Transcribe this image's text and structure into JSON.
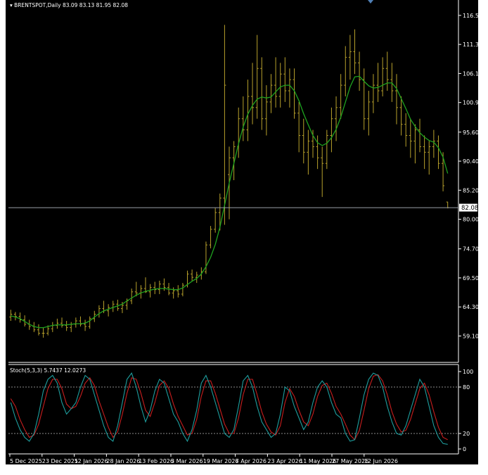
{
  "header": {
    "symbol_line": "BRENTSPOT,Daily 83.09 83.13 81.95 82.08",
    "indicator_line": "Stoch(5,3,3) 5.7437 12.0273"
  },
  "colors": {
    "background": "#000000",
    "axis": "#ffffff",
    "bar": "#b8a12c",
    "ma": "#1fa31f",
    "stoch_main": "#1e9e9e",
    "stoch_signal": "#c81e1e",
    "price_line": "#9aa0a8",
    "price_tag_bg": "#ffffff"
  },
  "chart_data": [
    {
      "type": "line",
      "name": "price",
      "title": "BRENTSPOT,Daily",
      "ylim": [
        55.0,
        118.5
      ],
      "y_ticks": [
        "116.50",
        "111.30",
        "106.10",
        "100.90",
        "95.60",
        "90.40",
        "85.20",
        "80.00",
        "74.70",
        "69.50",
        "64.30",
        "59.10"
      ],
      "current_price": "82.08",
      "x_ticks": [
        "5 Dec 2025",
        "23 Dec 2025",
        "12 Jan 2026",
        "28 Jan 2026",
        "13 Feb 2026",
        "3 Mar 2026",
        "19 Mar 2026",
        "7 Apr 2026",
        "23 Apr 2026",
        "11 May 2026",
        "27 May 2026",
        "12 Jun 2026"
      ],
      "bars": [
        [
          62.5,
          63.8,
          61.8,
          63.0
        ],
        [
          63.0,
          63.4,
          61.9,
          62.6
        ],
        [
          62.6,
          63.3,
          61.5,
          62.0
        ],
        [
          62.0,
          62.8,
          60.8,
          61.2
        ],
        [
          61.2,
          62.0,
          60.2,
          60.8
        ],
        [
          60.8,
          61.6,
          59.8,
          60.2
        ],
        [
          60.2,
          61.2,
          59.2,
          59.6
        ],
        [
          59.6,
          60.6,
          58.8,
          59.6
        ],
        [
          59.6,
          61.0,
          59.2,
          60.4
        ],
        [
          60.4,
          61.6,
          59.8,
          61.0
        ],
        [
          61.0,
          62.2,
          60.4,
          61.4
        ],
        [
          61.4,
          62.4,
          60.6,
          61.0
        ],
        [
          61.0,
          61.8,
          60.0,
          60.6
        ],
        [
          60.6,
          61.6,
          59.8,
          61.2
        ],
        [
          61.2,
          62.4,
          60.6,
          61.8
        ],
        [
          61.8,
          62.6,
          60.8,
          61.2
        ],
        [
          61.2,
          62.0,
          60.0,
          60.8
        ],
        [
          60.8,
          62.6,
          60.4,
          62.2
        ],
        [
          62.2,
          63.6,
          61.6,
          63.0
        ],
        [
          63.0,
          64.6,
          62.4,
          64.0
        ],
        [
          64.0,
          65.4,
          63.2,
          63.6
        ],
        [
          63.6,
          64.8,
          62.6,
          64.2
        ],
        [
          64.2,
          65.4,
          63.4,
          64.8
        ],
        [
          64.8,
          65.6,
          63.6,
          64.0
        ],
        [
          64.0,
          65.2,
          63.2,
          64.6
        ],
        [
          64.6,
          65.8,
          63.8,
          65.4
        ],
        [
          65.4,
          67.6,
          64.8,
          67.0
        ],
        [
          67.0,
          68.8,
          66.2,
          66.8
        ],
        [
          66.8,
          68.2,
          65.8,
          67.6
        ],
        [
          67.6,
          69.6,
          66.8,
          67.0
        ],
        [
          67.0,
          68.4,
          66.0,
          67.8
        ],
        [
          67.8,
          68.8,
          66.6,
          67.4
        ],
        [
          67.4,
          69.0,
          66.6,
          68.4
        ],
        [
          68.4,
          69.4,
          67.2,
          67.8
        ],
        [
          67.8,
          68.6,
          66.4,
          66.8
        ],
        [
          66.8,
          67.8,
          65.8,
          67.2
        ],
        [
          67.2,
          68.2,
          66.0,
          66.6
        ],
        [
          66.6,
          68.6,
          66.2,
          68.2
        ],
        [
          68.2,
          70.8,
          67.8,
          70.2
        ],
        [
          70.2,
          71.0,
          69.0,
          69.6
        ],
        [
          69.6,
          70.6,
          68.6,
          70.0
        ],
        [
          70.0,
          71.4,
          69.2,
          70.6
        ],
        [
          70.6,
          76.0,
          70.2,
          75.4
        ],
        [
          75.4,
          78.8,
          74.8,
          78.2
        ],
        [
          78.2,
          82.0,
          77.6,
          81.2
        ],
        [
          81.2,
          84.6,
          78.0,
          83.8
        ],
        [
          83.8,
          114.8,
          79.0,
          104.0
        ],
        [
          88.0,
          93.0,
          80.0,
          91.0
        ],
        [
          91.0,
          94.0,
          87.0,
          93.0
        ],
        [
          93.0,
          100.0,
          91.0,
          98.0
        ],
        [
          98.0,
          102.0,
          94.0,
          96.0
        ],
        [
          96.0,
          105.0,
          94.0,
          102.0
        ],
        [
          102.0,
          108.0,
          97.0,
          100.0
        ],
        [
          100.0,
          113.0,
          98.0,
          107.0
        ],
        [
          107.0,
          109.0,
          96.0,
          98.0
        ],
        [
          98.0,
          104.0,
          95.0,
          101.0
        ],
        [
          101.0,
          106.0,
          99.0,
          104.0
        ],
        [
          104.0,
          109.0,
          100.0,
          102.0
        ],
        [
          102.0,
          108.0,
          100.0,
          106.0
        ],
        [
          106.0,
          109.0,
          101.0,
          103.0
        ],
        [
          103.0,
          107.0,
          100.0,
          105.0
        ],
        [
          105.0,
          107.0,
          98.0,
          99.0
        ],
        [
          99.0,
          101.0,
          92.0,
          95.0
        ],
        [
          95.0,
          98.0,
          90.0,
          92.0
        ],
        [
          92.0,
          96.0,
          88.0,
          94.0
        ],
        [
          94.0,
          96.0,
          91.0,
          93.0
        ],
        [
          93.0,
          95.0,
          89.0,
          91.0
        ],
        [
          91.0,
          93.0,
          84.0,
          90.0
        ],
        [
          90.0,
          96.0,
          89.0,
          95.0
        ],
        [
          95.0,
          100.0,
          92.0,
          98.0
        ],
        [
          98.0,
          102.0,
          94.0,
          100.0
        ],
        [
          100.0,
          106.0,
          98.0,
          104.0
        ],
        [
          104.0,
          111.0,
          102.0,
          109.0
        ],
        [
          109.0,
          113.0,
          105.0,
          110.0
        ],
        [
          110.0,
          114.0,
          106.0,
          108.0
        ],
        [
          108.0,
          110.0,
          103.0,
          105.0
        ],
        [
          105.0,
          107.0,
          96.0,
          98.0
        ],
        [
          98.0,
          103.0,
          95.0,
          101.0
        ],
        [
          101.0,
          106.0,
          99.0,
          104.0
        ],
        [
          104.0,
          108.0,
          101.0,
          103.0
        ],
        [
          103.0,
          109.0,
          102.0,
          107.0
        ],
        [
          107.0,
          110.0,
          103.0,
          105.0
        ],
        [
          105.0,
          108.0,
          101.0,
          103.0
        ],
        [
          103.0,
          106.0,
          97.0,
          100.0
        ],
        [
          100.0,
          102.0,
          95.0,
          97.0
        ],
        [
          97.0,
          99.0,
          93.0,
          95.0
        ],
        [
          95.0,
          98.0,
          91.0,
          94.0
        ],
        [
          94.0,
          97.0,
          90.0,
          96.0
        ],
        [
          96.0,
          98.0,
          92.0,
          93.0
        ],
        [
          93.0,
          95.0,
          89.0,
          92.0
        ],
        [
          92.0,
          94.0,
          88.0,
          93.0
        ],
        [
          93.0,
          96.0,
          91.0,
          94.0
        ],
        [
          94.0,
          95.0,
          89.0,
          90.0
        ],
        [
          90.0,
          92.0,
          85.0,
          86.0
        ],
        [
          83.09,
          83.13,
          81.95,
          82.08
        ]
      ],
      "ma_values": [
        62.7,
        62.5,
        62.2,
        61.7,
        61.2,
        60.8,
        60.6,
        60.6,
        60.8,
        61.0,
        61.1,
        61.1,
        61.1,
        61.2,
        61.3,
        61.3,
        61.4,
        61.8,
        62.5,
        63.1,
        63.6,
        63.9,
        64.2,
        64.5,
        64.8,
        65.4,
        65.9,
        66.4,
        66.8,
        67.1,
        67.3,
        67.5,
        67.6,
        67.6,
        67.5,
        67.4,
        67.4,
        67.7,
        68.3,
        68.9,
        69.4,
        70.2,
        71.5,
        73.2,
        75.5,
        78.6,
        82.5,
        86.5,
        90.0,
        93.5,
        96.5,
        98.8,
        100.4,
        101.5,
        101.9,
        101.7,
        101.9,
        102.8,
        103.7,
        104.0,
        104.0,
        103.0,
        101.2,
        98.9,
        96.9,
        95.0,
        93.7,
        93.2,
        93.6,
        94.6,
        96.1,
        98.3,
        101.0,
        103.7,
        105.5,
        105.6,
        104.7,
        103.9,
        103.5,
        103.6,
        104.0,
        104.4,
        104.4,
        103.4,
        101.6,
        99.8,
        97.9,
        96.6,
        95.5,
        94.7,
        94.1,
        93.8,
        92.8,
        91.1,
        88.2
      ]
    },
    {
      "type": "line",
      "name": "Stoch(5,3,3)",
      "ylim": [
        0,
        100
      ],
      "y_ticks": [
        "100",
        "80",
        "20",
        "0"
      ],
      "levels": [
        80,
        20
      ],
      "main_values": [
        60,
        40,
        25,
        15,
        10,
        20,
        45,
        75,
        90,
        95,
        85,
        60,
        45,
        52,
        60,
        80,
        95,
        90,
        70,
        50,
        30,
        15,
        10,
        30,
        60,
        90,
        98,
        80,
        55,
        35,
        50,
        75,
        90,
        85,
        65,
        45,
        35,
        20,
        10,
        25,
        50,
        85,
        95,
        80,
        60,
        40,
        20,
        15,
        25,
        55,
        88,
        95,
        80,
        55,
        35,
        25,
        15,
        20,
        45,
        80,
        75,
        55,
        40,
        25,
        35,
        60,
        80,
        88,
        80,
        60,
        45,
        40,
        20,
        10,
        12,
        40,
        70,
        90,
        98,
        95,
        80,
        55,
        35,
        20,
        18,
        30,
        50,
        70,
        90,
        80,
        55,
        30,
        15,
        7,
        6
      ],
      "signal_values": [
        65,
        55,
        38,
        25,
        15,
        18,
        32,
        55,
        78,
        90,
        90,
        78,
        58,
        52,
        55,
        68,
        85,
        92,
        82,
        62,
        45,
        28,
        15,
        22,
        45,
        72,
        92,
        90,
        72,
        50,
        42,
        60,
        82,
        88,
        78,
        58,
        42,
        30,
        18,
        20,
        38,
        68,
        88,
        88,
        72,
        52,
        32,
        20,
        20,
        40,
        70,
        90,
        90,
        70,
        48,
        32,
        22,
        18,
        30,
        60,
        78,
        68,
        50,
        35,
        30,
        45,
        68,
        82,
        85,
        72,
        55,
        45,
        32,
        18,
        12,
        24,
        50,
        78,
        94,
        96,
        88,
        70,
        48,
        32,
        22,
        24,
        38,
        58,
        78,
        85,
        70,
        48,
        28,
        15,
        12
      ]
    }
  ]
}
